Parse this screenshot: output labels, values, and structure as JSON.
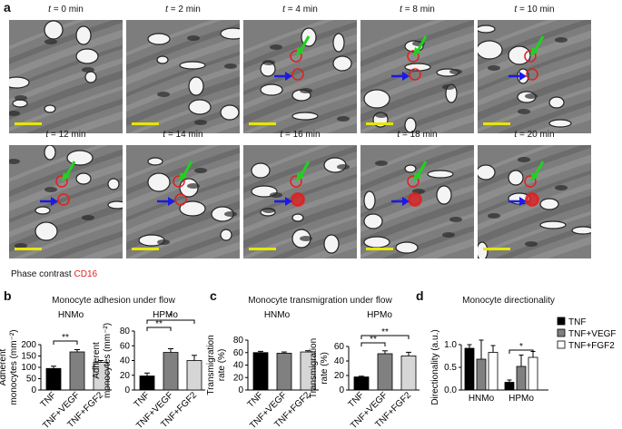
{
  "panel_labels": {
    "a": "a",
    "b": "b",
    "c": "c",
    "d": "d"
  },
  "timelapse": {
    "frames": [
      {
        "t": "t",
        "eq": " = 0 min"
      },
      {
        "t": "t",
        "eq": " = 2 min"
      },
      {
        "t": "t",
        "eq": " = 4 min"
      },
      {
        "t": "t",
        "eq": " = 8 min"
      },
      {
        "t": "t",
        "eq": " = 10 min"
      },
      {
        "t": "t",
        "eq": " = 12 min"
      },
      {
        "t": "t",
        "eq": " = 14 min"
      },
      {
        "t": "t",
        "eq": " = 16 min"
      },
      {
        "t": "t",
        "eq": " = 18 min"
      },
      {
        "t": "t",
        "eq": " = 20 min"
      }
    ],
    "legend_phase": "Phase contrast",
    "legend_cd16": "CD16",
    "colors": {
      "green_arrow": "#1fd21f",
      "blue_arrow": "#1a1ae6",
      "cd16": "#e02020",
      "scale_bar": "#e6e600"
    }
  },
  "chart_data": [
    {
      "type": "bar",
      "panel": "b",
      "title": "Monocyte adhesion under flow",
      "subtitle": "HNMo",
      "ylabel": "Adherent monocytes (mm⁻²)",
      "categories": [
        "TNF",
        "TNF+VEGF",
        "TNF+FGF2"
      ],
      "values": [
        95,
        168,
        122
      ],
      "errors": [
        10,
        10,
        8
      ],
      "ylim": [
        0,
        200
      ],
      "yticks": [
        0,
        50,
        100,
        150,
        200
      ],
      "significance": [
        {
          "from": 0,
          "to": 1,
          "label": "**"
        }
      ]
    },
    {
      "type": "bar",
      "panel": "b",
      "subtitle": "HPMo",
      "ylabel": "Adherent monocytes (mm⁻²)",
      "categories": [
        "TNF",
        "TNF+VEGF",
        "TNF+FGF2"
      ],
      "values": [
        19,
        51,
        40
      ],
      "errors": [
        4,
        5,
        7
      ],
      "ylim": [
        0,
        80
      ],
      "yticks": [
        0,
        20,
        40,
        60,
        80
      ],
      "significance": [
        {
          "from": 0,
          "to": 1,
          "label": "**"
        },
        {
          "from": 0,
          "to": 2,
          "label": "*"
        }
      ]
    },
    {
      "type": "bar",
      "panel": "c",
      "title": "Monocyte transmigration under flow",
      "subtitle": "HNMo",
      "ylabel": "Transmigration rate (%)",
      "categories": [
        "TNF",
        "TNF+VEGF",
        "TNF+FGF2"
      ],
      "values": [
        60,
        59,
        61
      ],
      "errors": [
        2,
        2,
        2
      ],
      "ylim": [
        0,
        80
      ],
      "yticks": [
        0,
        20,
        40,
        60,
        80
      ],
      "significance": []
    },
    {
      "type": "bar",
      "panel": "c",
      "subtitle": "HPMo",
      "ylabel": "Transmigration rate (%)",
      "categories": [
        "TNF",
        "TNF+VEGF",
        "TNF+FGF2"
      ],
      "values": [
        18,
        50,
        47
      ],
      "errors": [
        1,
        4,
        5
      ],
      "ylim": [
        0,
        60
      ],
      "yticks": [
        0,
        20,
        40,
        60
      ],
      "significance": [
        {
          "from": 0,
          "to": 1,
          "label": "**"
        },
        {
          "from": 0,
          "to": 2,
          "label": "**"
        }
      ]
    },
    {
      "type": "bar",
      "panel": "d",
      "title": "Monocyte directionality",
      "ylabel": "Directionality (a.u.)",
      "categories": [
        "HNMo",
        "HPMo"
      ],
      "series": [
        {
          "name": "TNF",
          "values": [
            0.92,
            0.17
          ],
          "errors": [
            0.08,
            0.05
          ]
        },
        {
          "name": "TNF+VEGF",
          "values": [
            0.68,
            0.52
          ],
          "errors": [
            0.42,
            0.25
          ]
        },
        {
          "name": "TNF+FGF2",
          "values": [
            0.83,
            0.72
          ],
          "errors": [
            0.15,
            0.13
          ]
        }
      ],
      "ylim": [
        0,
        1.0
      ],
      "yticks": [
        "0.0",
        "0.5",
        "1.0"
      ],
      "significance": [
        {
          "group": 1,
          "from": 0,
          "to": 2,
          "label": "*"
        }
      ],
      "legend": "right"
    }
  ],
  "bar_colors": {
    "TNF": "#000000",
    "TNF+VEGF": "#808080",
    "TNF+FGF2": "#d6d6d6",
    "TNF+FGF2_d": "#ffffff"
  }
}
